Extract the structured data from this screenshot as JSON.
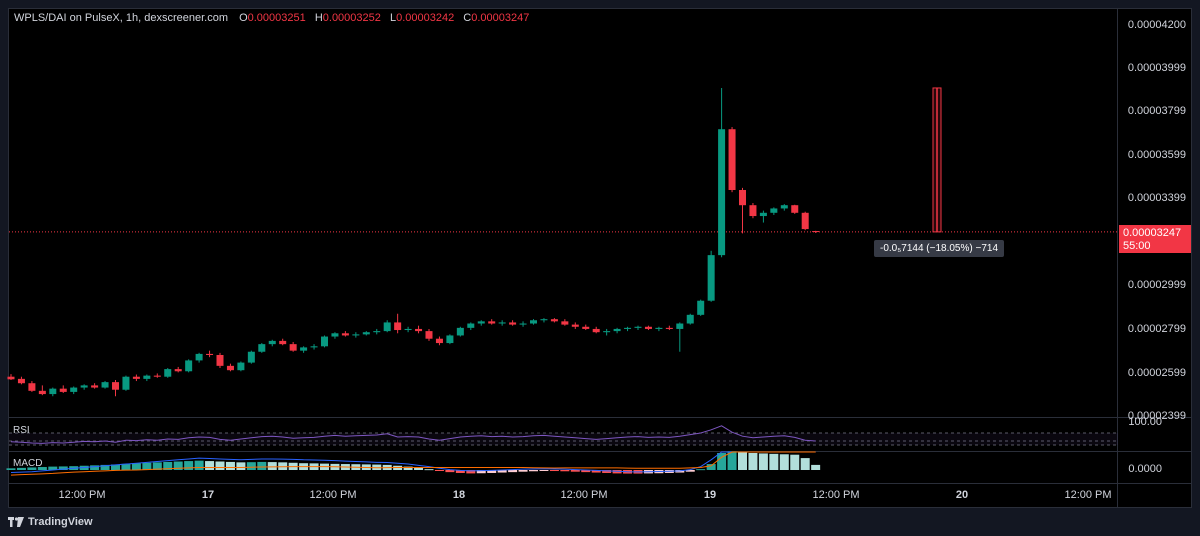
{
  "legend": {
    "symbol": "WPLS/DAI on PulseX, 1h, dexscreener.com",
    "o_label": "O",
    "o_value": "0.00003251",
    "h_label": "H",
    "h_value": "0.00003252",
    "l_label": "L",
    "l_value": "0.00003242",
    "c_label": "C",
    "c_value": "0.00003247"
  },
  "price_axis": {
    "ticks": [
      "0.00004200",
      "0.00003999",
      "0.00003799",
      "0.00003599",
      "0.00003399",
      "0.00002999",
      "0.00002799",
      "0.00002599",
      "0.00002399"
    ],
    "last_price": "0.00003247",
    "countdown": "55:00"
  },
  "time_axis": {
    "ticks": [
      "12:00 PM",
      "17",
      "12:00 PM",
      "18",
      "12:00 PM",
      "19",
      "12:00 PM",
      "20",
      "12:00 PM"
    ]
  },
  "measure_tooltip": "-0.0₅7144 (−18.05%) −714",
  "rsi": {
    "label": "RSI",
    "level": "100.00"
  },
  "macd": {
    "label": "MACD",
    "zero": "0.0000"
  },
  "footer": {
    "brand": "TradingView"
  },
  "colors": {
    "up": "#089981",
    "down": "#f23645",
    "rsi_line": "#7e57c2",
    "macd_line": "#2962ff",
    "signal_line": "#ff6d00",
    "hist_up_strong": "#26a69a",
    "hist_up_weak": "#b2dfdb",
    "hist_down_strong": "#ff5252",
    "hist_down_weak": "#ffcdd2"
  },
  "chart_data": {
    "type": "candlestick",
    "timeframe": "1h",
    "ylim": [
      2.399e-05,
      4.2e-05
    ],
    "ohlc": [
      [
        2.58e-05,
        2.592e-05,
        2.565e-05,
        2.568e-05
      ],
      [
        2.57e-05,
        2.58e-05,
        2.545e-05,
        2.55e-05
      ],
      [
        2.55e-05,
        2.56e-05,
        2.51e-05,
        2.515e-05
      ],
      [
        2.515e-05,
        2.54e-05,
        2.495e-05,
        2.5e-05
      ],
      [
        2.5e-05,
        2.53e-05,
        2.49e-05,
        2.525e-05
      ],
      [
        2.525e-05,
        2.54e-05,
        2.505e-05,
        2.51e-05
      ],
      [
        2.51e-05,
        2.535e-05,
        2.5e-05,
        2.53e-05
      ],
      [
        2.53e-05,
        2.545e-05,
        2.52e-05,
        2.54e-05
      ],
      [
        2.54e-05,
        2.55e-05,
        2.525e-05,
        2.53e-05
      ],
      [
        2.53e-05,
        2.56e-05,
        2.525e-05,
        2.555e-05
      ],
      [
        2.555e-05,
        2.565e-05,
        2.49e-05,
        2.52e-05
      ],
      [
        2.52e-05,
        2.585e-05,
        2.515e-05,
        2.58e-05
      ],
      [
        2.58e-05,
        2.59e-05,
        2.56e-05,
        2.57e-05
      ],
      [
        2.57e-05,
        2.59e-05,
        2.56e-05,
        2.585e-05
      ],
      [
        2.585e-05,
        2.595e-05,
        2.575e-05,
        2.58e-05
      ],
      [
        2.58e-05,
        2.62e-05,
        2.575e-05,
        2.615e-05
      ],
      [
        2.615e-05,
        2.625e-05,
        2.6e-05,
        2.605e-05
      ],
      [
        2.605e-05,
        2.66e-05,
        2.6e-05,
        2.655e-05
      ],
      [
        2.655e-05,
        2.69e-05,
        2.645e-05,
        2.685e-05
      ],
      [
        2.685e-05,
        2.7e-05,
        2.67e-05,
        2.68e-05
      ],
      [
        2.68e-05,
        2.69e-05,
        2.62e-05,
        2.63e-05
      ],
      [
        2.63e-05,
        2.64e-05,
        2.605e-05,
        2.61e-05
      ],
      [
        2.61e-05,
        2.65e-05,
        2.605e-05,
        2.645e-05
      ],
      [
        2.645e-05,
        2.7e-05,
        2.64e-05,
        2.695e-05
      ],
      [
        2.695e-05,
        2.735e-05,
        2.69e-05,
        2.73e-05
      ],
      [
        2.73e-05,
        2.75e-05,
        2.72e-05,
        2.745e-05
      ],
      [
        2.745e-05,
        2.755e-05,
        2.725e-05,
        2.73e-05
      ],
      [
        2.73e-05,
        2.74e-05,
        2.695e-05,
        2.7e-05
      ],
      [
        2.7e-05,
        2.72e-05,
        2.69e-05,
        2.715e-05
      ],
      [
        2.715e-05,
        2.73e-05,
        2.705e-05,
        2.72e-05
      ],
      [
        2.72e-05,
        2.77e-05,
        2.715e-05,
        2.765e-05
      ],
      [
        2.765e-05,
        2.785e-05,
        2.755e-05,
        2.78e-05
      ],
      [
        2.78e-05,
        2.79e-05,
        2.765e-05,
        2.77e-05
      ],
      [
        2.77e-05,
        2.785e-05,
        2.76e-05,
        2.775e-05
      ],
      [
        2.775e-05,
        2.79e-05,
        2.77e-05,
        2.785e-05
      ],
      [
        2.785e-05,
        2.8e-05,
        2.775e-05,
        2.79e-05
      ],
      [
        2.79e-05,
        2.84e-05,
        2.785e-05,
        2.83e-05
      ],
      [
        2.83e-05,
        2.87e-05,
        2.78e-05,
        2.795e-05
      ],
      [
        2.795e-05,
        2.81e-05,
        2.785e-05,
        2.8e-05
      ],
      [
        2.8e-05,
        2.815e-05,
        2.78e-05,
        2.79e-05
      ],
      [
        2.79e-05,
        2.8e-05,
        2.745e-05,
        2.755e-05
      ],
      [
        2.755e-05,
        2.765e-05,
        2.725e-05,
        2.735e-05
      ],
      [
        2.735e-05,
        2.775e-05,
        2.73e-05,
        2.77e-05
      ],
      [
        2.77e-05,
        2.81e-05,
        2.765e-05,
        2.805e-05
      ],
      [
        2.805e-05,
        2.83e-05,
        2.795e-05,
        2.825e-05
      ],
      [
        2.825e-05,
        2.84e-05,
        2.815e-05,
        2.835e-05
      ],
      [
        2.835e-05,
        2.845e-05,
        2.82e-05,
        2.825e-05
      ],
      [
        2.825e-05,
        2.84e-05,
        2.815e-05,
        2.83e-05
      ],
      [
        2.83e-05,
        2.84e-05,
        2.815e-05,
        2.82e-05
      ],
      [
        2.82e-05,
        2.835e-05,
        2.81e-05,
        2.825e-05
      ],
      [
        2.825e-05,
        2.845e-05,
        2.82e-05,
        2.84e-05
      ],
      [
        2.84e-05,
        2.85e-05,
        2.83e-05,
        2.845e-05
      ],
      [
        2.845e-05,
        2.85e-05,
        2.83e-05,
        2.835e-05
      ],
      [
        2.835e-05,
        2.845e-05,
        2.815e-05,
        2.82e-05
      ],
      [
        2.82e-05,
        2.83e-05,
        2.8e-05,
        2.81e-05
      ],
      [
        2.81e-05,
        2.82e-05,
        2.795e-05,
        2.8e-05
      ],
      [
        2.8e-05,
        2.81e-05,
        2.78e-05,
        2.785e-05
      ],
      [
        2.785e-05,
        2.8e-05,
        2.77e-05,
        2.79e-05
      ],
      [
        2.79e-05,
        2.805e-05,
        2.78e-05,
        2.8e-05
      ],
      [
        2.8e-05,
        2.81e-05,
        2.79e-05,
        2.805e-05
      ],
      [
        2.805e-05,
        2.815e-05,
        2.795e-05,
        2.81e-05
      ],
      [
        2.81e-05,
        2.815e-05,
        2.795e-05,
        2.8e-05
      ],
      [
        2.8e-05,
        2.81e-05,
        2.79e-05,
        2.805e-05
      ],
      [
        2.805e-05,
        2.815e-05,
        2.795e-05,
        2.8e-05
      ],
      [
        2.8e-05,
        2.83e-05,
        2.695e-05,
        2.825e-05
      ],
      [
        2.825e-05,
        2.87e-05,
        2.82e-05,
        2.865e-05
      ],
      [
        2.865e-05,
        2.935e-05,
        2.86e-05,
        2.93e-05
      ],
      [
        2.93e-05,
        3.16e-05,
        2.925e-05,
        3.14e-05
      ],
      [
        3.14e-05,
        3.91e-05,
        3.13e-05,
        3.72e-05
      ],
      [
        3.72e-05,
        3.73e-05,
        3.43e-05,
        3.44e-05
      ],
      [
        3.44e-05,
        3.45e-05,
        3.24e-05,
        3.37e-05
      ],
      [
        3.37e-05,
        3.38e-05,
        3.31e-05,
        3.32e-05
      ],
      [
        3.32e-05,
        3.345e-05,
        3.29e-05,
        3.335e-05
      ],
      [
        3.335e-05,
        3.36e-05,
        3.325e-05,
        3.355e-05
      ],
      [
        3.355e-05,
        3.375e-05,
        3.345e-05,
        3.37e-05
      ],
      [
        3.37e-05,
        3.372e-05,
        3.33e-05,
        3.335e-05
      ],
      [
        3.335e-05,
        3.34e-05,
        3.255e-05,
        3.26e-05
      ],
      [
        3.251e-05,
        3.252e-05,
        3.242e-05,
        3.247e-05
      ]
    ],
    "rsi": [
      48,
      47,
      45,
      44,
      46,
      45,
      47,
      49,
      48,
      50,
      47,
      52,
      51,
      53,
      52,
      55,
      54,
      58,
      60,
      59,
      54,
      52,
      55,
      58,
      61,
      62,
      60,
      57,
      58,
      59,
      62,
      64,
      62,
      63,
      64,
      65,
      68,
      60,
      61,
      60,
      55,
      52,
      56,
      60,
      62,
      63,
      61,
      62,
      60,
      61,
      63,
      64,
      62,
      60,
      58,
      56,
      54,
      56,
      58,
      60,
      61,
      59,
      60,
      59,
      62,
      66,
      70,
      78,
      88,
      72,
      62,
      58,
      60,
      62,
      63,
      59,
      52,
      50
    ],
    "macd_histogram": [
      0.2,
      0.25,
      0.3,
      0.35,
      0.4,
      0.42,
      0.45,
      0.5,
      0.55,
      0.6,
      0.65,
      0.72,
      0.8,
      0.85,
      0.9,
      0.95,
      1.0,
      1.05,
      1.1,
      1.05,
      1.0,
      0.95,
      0.9,
      0.92,
      0.95,
      0.93,
      0.9,
      0.85,
      0.8,
      0.78,
      0.75,
      0.72,
      0.7,
      0.68,
      0.66,
      0.64,
      0.6,
      0.5,
      0.4,
      0.25,
      0.1,
      -0.1,
      -0.25,
      -0.35,
      -0.4,
      -0.38,
      -0.35,
      -0.3,
      -0.25,
      -0.2,
      -0.15,
      -0.1,
      -0.12,
      -0.15,
      -0.2,
      -0.25,
      -0.3,
      -0.35,
      -0.4,
      -0.42,
      -0.42,
      -0.4,
      -0.38,
      -0.35,
      -0.3,
      -0.2,
      0.1,
      0.7,
      2.0,
      2.2,
      2.1,
      2.0,
      1.95,
      1.9,
      1.85,
      1.8,
      1.4,
      0.6
    ],
    "macd_line": [
      -0.3,
      -0.25,
      -0.2,
      -0.1,
      0.0,
      0.1,
      0.2,
      0.3,
      0.4,
      0.5,
      0.6,
      0.7,
      0.8,
      0.9,
      1.0,
      1.1,
      1.2,
      1.3,
      1.4,
      1.35,
      1.3,
      1.25,
      1.2,
      1.25,
      1.3,
      1.3,
      1.28,
      1.25,
      1.2,
      1.18,
      1.15,
      1.1,
      1.05,
      1.0,
      0.95,
      0.9,
      0.88,
      0.8,
      0.7,
      0.55,
      0.4,
      0.2,
      0.05,
      -0.05,
      -0.1,
      -0.08,
      -0.05,
      0.0,
      0.05,
      0.1,
      0.12,
      0.15,
      0.12,
      0.1,
      0.05,
      0.0,
      -0.05,
      -0.1,
      -0.15,
      -0.2,
      -0.22,
      -0.2,
      -0.18,
      -0.15,
      -0.1,
      0.05,
      0.4,
      1.2,
      3.5,
      5.0,
      5.6,
      5.8,
      5.9,
      5.95,
      6.0,
      6.0,
      5.9,
      5.7
    ],
    "signal_line": [
      -0.6,
      -0.55,
      -0.5,
      -0.45,
      -0.4,
      -0.32,
      -0.25,
      -0.2,
      -0.15,
      -0.1,
      -0.05,
      -0.02,
      0.0,
      0.05,
      0.1,
      0.15,
      0.2,
      0.25,
      0.3,
      0.3,
      0.3,
      0.3,
      0.3,
      0.33,
      0.35,
      0.37,
      0.38,
      0.4,
      0.4,
      0.4,
      0.4,
      0.38,
      0.35,
      0.32,
      0.29,
      0.26,
      0.28,
      0.3,
      0.3,
      0.3,
      0.3,
      0.3,
      0.3,
      0.3,
      0.3,
      0.3,
      0.3,
      0.3,
      0.3,
      0.3,
      0.27,
      0.25,
      0.24,
      0.25,
      0.25,
      0.25,
      0.25,
      0.25,
      0.25,
      0.22,
      0.2,
      0.2,
      0.2,
      0.2,
      0.2,
      0.25,
      0.3,
      0.5,
      1.5,
      2.8,
      3.5,
      3.8,
      3.95,
      4.05,
      4.15,
      4.2,
      4.5,
      5.1
    ]
  }
}
